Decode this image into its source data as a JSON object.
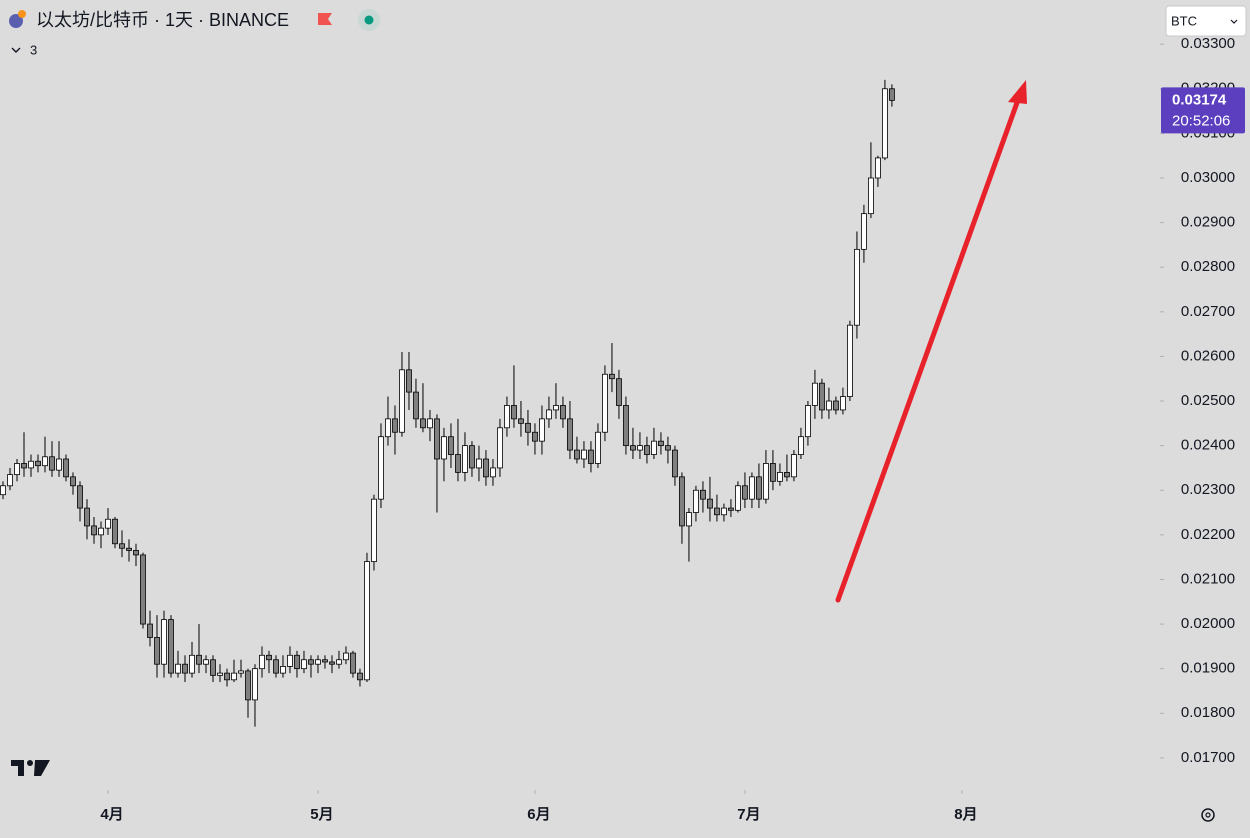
{
  "chart_data": {
    "type": "candlestick",
    "title": "以太坊/比特币 · 1天 · BINANCE",
    "indicator_count": "3",
    "currency": "BTC",
    "countdown": "20:52:06",
    "last_price": 0.03174,
    "last_color": "#5b3fbf",
    "up_color": "#ffffff",
    "down_color": "#808080",
    "wick_color": "#000000",
    "grid": false,
    "xlim": [
      -0.43,
      165.3
    ],
    "xticks": [
      {
        "value": 15,
        "label": "4月"
      },
      {
        "value": 45,
        "label": "5月"
      },
      {
        "value": 76,
        "label": "6月"
      },
      {
        "value": 106,
        "label": "7月"
      },
      {
        "value": 137,
        "label": "8月"
      }
    ],
    "ylim": [
      0.01628,
      0.03399
    ],
    "yticks": [
      {
        "value": 0.017,
        "label": "0.01700"
      },
      {
        "value": 0.018,
        "label": "0.01800"
      },
      {
        "value": 0.019,
        "label": "0.01900"
      },
      {
        "value": 0.02,
        "label": "0.02000"
      },
      {
        "value": 0.021,
        "label": "0.02100"
      },
      {
        "value": 0.022,
        "label": "0.02200"
      },
      {
        "value": 0.023,
        "label": "0.02300"
      },
      {
        "value": 0.024,
        "label": "0.02400"
      },
      {
        "value": 0.025,
        "label": "0.02500"
      },
      {
        "value": 0.026,
        "label": "0.02600"
      },
      {
        "value": 0.027,
        "label": "0.02700"
      },
      {
        "value": 0.028,
        "label": "0.02800"
      },
      {
        "value": 0.029,
        "label": "0.02900"
      },
      {
        "value": 0.03,
        "label": "0.03000"
      },
      {
        "value": 0.031,
        "label": "0.03100"
      },
      {
        "value": 0.032,
        "label": "0.03200"
      },
      {
        "value": 0.033,
        "label": "0.03300"
      }
    ],
    "ohlc": [
      [
        0.0229,
        0.0232,
        0.0228,
        0.0231
      ],
      [
        0.0231,
        0.0235,
        0.023,
        0.02335
      ],
      [
        0.02335,
        0.0237,
        0.0232,
        0.0236
      ],
      [
        0.0236,
        0.0243,
        0.0233,
        0.0235
      ],
      [
        0.0235,
        0.0238,
        0.0233,
        0.02365
      ],
      [
        0.02365,
        0.0238,
        0.0234,
        0.02355
      ],
      [
        0.02355,
        0.0242,
        0.0234,
        0.02375
      ],
      [
        0.02375,
        0.0241,
        0.0233,
        0.02345
      ],
      [
        0.02345,
        0.0241,
        0.0233,
        0.0237
      ],
      [
        0.0237,
        0.0238,
        0.0232,
        0.0233
      ],
      [
        0.0233,
        0.0234,
        0.0229,
        0.0231
      ],
      [
        0.0231,
        0.0232,
        0.0223,
        0.0226
      ],
      [
        0.0226,
        0.0228,
        0.0219,
        0.0222
      ],
      [
        0.0222,
        0.0224,
        0.0218,
        0.022
      ],
      [
        0.022,
        0.0223,
        0.0217,
        0.02215
      ],
      [
        0.02215,
        0.0226,
        0.022,
        0.02235
      ],
      [
        0.02235,
        0.0224,
        0.0217,
        0.0218
      ],
      [
        0.0218,
        0.0221,
        0.0215,
        0.0217
      ],
      [
        0.0217,
        0.0219,
        0.0214,
        0.02165
      ],
      [
        0.02165,
        0.0218,
        0.0213,
        0.02155
      ],
      [
        0.02155,
        0.0216,
        0.0199,
        0.02
      ],
      [
        0.02,
        0.0203,
        0.0195,
        0.0197
      ],
      [
        0.0197,
        0.0202,
        0.0188,
        0.0191
      ],
      [
        0.0191,
        0.0203,
        0.0188,
        0.0201
      ],
      [
        0.0201,
        0.0202,
        0.0188,
        0.0189
      ],
      [
        0.0189,
        0.0194,
        0.0188,
        0.0191
      ],
      [
        0.0191,
        0.0193,
        0.0187,
        0.0189
      ],
      [
        0.0189,
        0.0196,
        0.0188,
        0.0193
      ],
      [
        0.0193,
        0.02,
        0.0189,
        0.0191
      ],
      [
        0.0191,
        0.0193,
        0.0189,
        0.0192
      ],
      [
        0.0192,
        0.0193,
        0.0187,
        0.01885
      ],
      [
        0.01885,
        0.0191,
        0.0187,
        0.0189
      ],
      [
        0.0189,
        0.019,
        0.0186,
        0.01875
      ],
      [
        0.01875,
        0.0192,
        0.0187,
        0.0189
      ],
      [
        0.0189,
        0.0192,
        0.0188,
        0.01895
      ],
      [
        0.01895,
        0.019,
        0.0179,
        0.0183
      ],
      [
        0.0183,
        0.0191,
        0.0177,
        0.019
      ],
      [
        0.019,
        0.0195,
        0.0188,
        0.0193
      ],
      [
        0.0193,
        0.0194,
        0.0189,
        0.0192
      ],
      [
        0.0192,
        0.0193,
        0.0188,
        0.0189
      ],
      [
        0.0189,
        0.0193,
        0.0188,
        0.01905
      ],
      [
        0.01905,
        0.0195,
        0.0189,
        0.0193
      ],
      [
        0.0193,
        0.0194,
        0.0188,
        0.019
      ],
      [
        0.019,
        0.0194,
        0.0189,
        0.0192
      ],
      [
        0.0192,
        0.0193,
        0.0188,
        0.0191
      ],
      [
        0.0191,
        0.0193,
        0.0189,
        0.0192
      ],
      [
        0.0192,
        0.0193,
        0.019,
        0.01915
      ],
      [
        0.01915,
        0.0193,
        0.0189,
        0.0191
      ],
      [
        0.0191,
        0.0194,
        0.019,
        0.0192
      ],
      [
        0.0192,
        0.0195,
        0.0191,
        0.01935
      ],
      [
        0.01935,
        0.0194,
        0.0188,
        0.0189
      ],
      [
        0.0189,
        0.019,
        0.0186,
        0.01875
      ],
      [
        0.01875,
        0.0216,
        0.0187,
        0.0214
      ],
      [
        0.0214,
        0.0229,
        0.0212,
        0.0228
      ],
      [
        0.0228,
        0.0245,
        0.0226,
        0.0242
      ],
      [
        0.0242,
        0.0251,
        0.024,
        0.0246
      ],
      [
        0.0246,
        0.0249,
        0.0238,
        0.0243
      ],
      [
        0.0243,
        0.0261,
        0.0242,
        0.0257
      ],
      [
        0.0257,
        0.0261,
        0.0248,
        0.0252
      ],
      [
        0.0252,
        0.0255,
        0.0244,
        0.0246
      ],
      [
        0.0246,
        0.0254,
        0.0243,
        0.0244
      ],
      [
        0.0244,
        0.0248,
        0.0241,
        0.0246
      ],
      [
        0.0246,
        0.0247,
        0.0225,
        0.0237
      ],
      [
        0.0237,
        0.0244,
        0.0232,
        0.0242
      ],
      [
        0.0242,
        0.0245,
        0.0235,
        0.0238
      ],
      [
        0.0238,
        0.0246,
        0.0232,
        0.0234
      ],
      [
        0.0234,
        0.0243,
        0.0232,
        0.024
      ],
      [
        0.024,
        0.0241,
        0.0233,
        0.0235
      ],
      [
        0.0235,
        0.024,
        0.0232,
        0.0237
      ],
      [
        0.0237,
        0.0239,
        0.0231,
        0.0233
      ],
      [
        0.0233,
        0.0237,
        0.0231,
        0.0235
      ],
      [
        0.0235,
        0.0246,
        0.0233,
        0.0244
      ],
      [
        0.0244,
        0.0251,
        0.0242,
        0.0249
      ],
      [
        0.0249,
        0.0258,
        0.0244,
        0.0246
      ],
      [
        0.0246,
        0.025,
        0.0242,
        0.0245
      ],
      [
        0.0245,
        0.0248,
        0.024,
        0.0243
      ],
      [
        0.0243,
        0.0245,
        0.0238,
        0.0241
      ],
      [
        0.0241,
        0.0249,
        0.0238,
        0.0246
      ],
      [
        0.0246,
        0.0251,
        0.0244,
        0.0248
      ],
      [
        0.0248,
        0.0254,
        0.0246,
        0.0249
      ],
      [
        0.0249,
        0.0251,
        0.0244,
        0.0246
      ],
      [
        0.0246,
        0.025,
        0.0237,
        0.0239
      ],
      [
        0.0239,
        0.0242,
        0.0236,
        0.0237
      ],
      [
        0.0237,
        0.0241,
        0.0235,
        0.0239
      ],
      [
        0.0239,
        0.0241,
        0.0234,
        0.0236
      ],
      [
        0.0236,
        0.0245,
        0.0235,
        0.0243
      ],
      [
        0.0243,
        0.0258,
        0.0241,
        0.0256
      ],
      [
        0.0256,
        0.0263,
        0.0252,
        0.0255
      ],
      [
        0.0255,
        0.0257,
        0.0246,
        0.0249
      ],
      [
        0.0249,
        0.0251,
        0.0238,
        0.024
      ],
      [
        0.024,
        0.0244,
        0.0237,
        0.0239
      ],
      [
        0.0239,
        0.0243,
        0.0237,
        0.024
      ],
      [
        0.024,
        0.0242,
        0.0236,
        0.0238
      ],
      [
        0.0238,
        0.0244,
        0.0237,
        0.0241
      ],
      [
        0.0241,
        0.0243,
        0.0238,
        0.024
      ],
      [
        0.024,
        0.0242,
        0.0236,
        0.0239
      ],
      [
        0.0239,
        0.024,
        0.0231,
        0.0233
      ],
      [
        0.0233,
        0.0234,
        0.0218,
        0.0222
      ],
      [
        0.0222,
        0.0226,
        0.0214,
        0.0225
      ],
      [
        0.0225,
        0.0231,
        0.0223,
        0.023
      ],
      [
        0.023,
        0.0232,
        0.0225,
        0.0228
      ],
      [
        0.0228,
        0.0233,
        0.0223,
        0.0226
      ],
      [
        0.0226,
        0.0229,
        0.0223,
        0.02245
      ],
      [
        0.02245,
        0.0227,
        0.0223,
        0.0226
      ],
      [
        0.0226,
        0.0228,
        0.0224,
        0.02255
      ],
      [
        0.02255,
        0.0232,
        0.0225,
        0.0231
      ],
      [
        0.0231,
        0.0234,
        0.0226,
        0.0228
      ],
      [
        0.0228,
        0.0234,
        0.0226,
        0.0233
      ],
      [
        0.0233,
        0.0236,
        0.0226,
        0.0228
      ],
      [
        0.0228,
        0.0239,
        0.0227,
        0.0236
      ],
      [
        0.0236,
        0.0239,
        0.023,
        0.0232
      ],
      [
        0.0232,
        0.0236,
        0.0231,
        0.0234
      ],
      [
        0.0234,
        0.0238,
        0.0232,
        0.0233
      ],
      [
        0.0233,
        0.0239,
        0.0232,
        0.0238
      ],
      [
        0.0238,
        0.0244,
        0.0237,
        0.0242
      ],
      [
        0.0242,
        0.025,
        0.024,
        0.0249
      ],
      [
        0.0249,
        0.0257,
        0.0246,
        0.0254
      ],
      [
        0.0254,
        0.0255,
        0.0246,
        0.0248
      ],
      [
        0.0248,
        0.0253,
        0.0246,
        0.025
      ],
      [
        0.025,
        0.0251,
        0.0247,
        0.0248
      ],
      [
        0.0248,
        0.0253,
        0.0247,
        0.0251
      ],
      [
        0.0251,
        0.0268,
        0.025,
        0.0267
      ],
      [
        0.0267,
        0.0288,
        0.0264,
        0.0284
      ],
      [
        0.0284,
        0.0294,
        0.0281,
        0.0292
      ],
      [
        0.0292,
        0.0308,
        0.0291,
        0.03
      ],
      [
        0.03,
        0.0305,
        0.0298,
        0.03045
      ],
      [
        0.03045,
        0.0322,
        0.0304,
        0.032
      ],
      [
        0.032,
        0.0321,
        0.0316,
        0.03174
      ]
    ]
  }
}
